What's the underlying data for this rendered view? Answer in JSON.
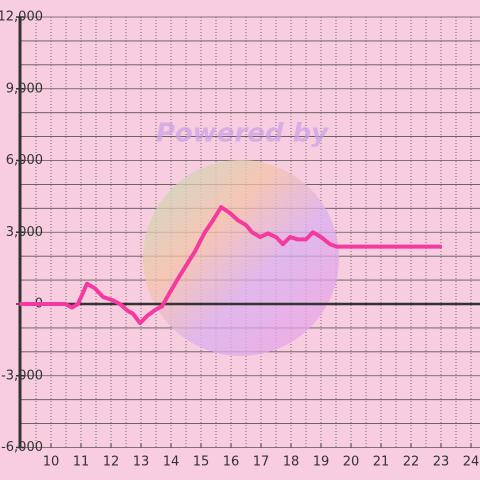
{
  "chart_data": {
    "type": "line",
    "watermark": "Powered by",
    "x": [
      9,
      10.47,
      10.7,
      10.9,
      11.2,
      11.47,
      11.73,
      12.07,
      12.3,
      12.57,
      12.73,
      12.97,
      13.2,
      13.47,
      13.7,
      13.97,
      14.3,
      14.8,
      15.13,
      15.4,
      15.67,
      15.97,
      16.23,
      16.5,
      16.7,
      16.97,
      17.23,
      17.5,
      17.73,
      17.97,
      18.23,
      18.5,
      18.73,
      19.0,
      19.3,
      19.53,
      22.97
    ],
    "series": [
      {
        "color": "#f5399f",
        "values": [
          0,
          0,
          -150,
          0,
          850,
          650,
          300,
          150,
          0,
          -300,
          -400,
          -800,
          -500,
          -250,
          -100,
          500,
          1200,
          2200,
          3000,
          3500,
          4050,
          3800,
          3500,
          3300,
          3000,
          2800,
          2950,
          2800,
          2500,
          2800,
          2700,
          2700,
          3000,
          2800,
          2500,
          2400,
          2400
        ]
      }
    ],
    "xlim": [
      9,
      24.3
    ],
    "xticks": [
      10,
      11,
      12,
      13,
      14,
      15,
      16,
      17,
      18,
      19,
      20,
      21,
      22,
      23,
      24
    ],
    "ylim": [
      -6000,
      12000
    ],
    "yticks": [
      {
        "value": -6000,
        "label": "-6,000"
      },
      {
        "value": -3000,
        "label": "-3,000"
      },
      0,
      {
        "value": 3000,
        "label": "3,000"
      },
      {
        "value": 6000,
        "label": "6,000"
      },
      {
        "value": 9000,
        "label": "9,000"
      },
      {
        "value": 12000,
        "label": "12,000"
      }
    ],
    "y_minor_step": 1000,
    "x_minor_step": 0.5,
    "grid": true
  }
}
